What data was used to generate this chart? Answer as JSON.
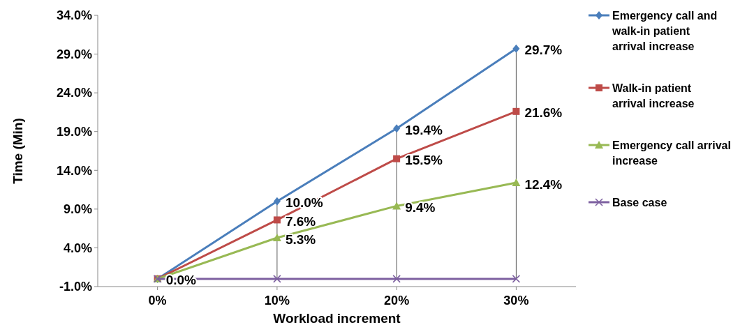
{
  "chart_data": {
    "type": "line",
    "xlabel": "Workload increment",
    "ylabel": "Time (Min)",
    "categories": [
      "0%",
      "10%",
      "20%",
      "30%"
    ],
    "ylim": [
      -1,
      34
    ],
    "yticks": [
      {
        "value": -1,
        "label": "-1.0%"
      },
      {
        "value": 4,
        "label": "4.0%"
      },
      {
        "value": 9,
        "label": "9.0%"
      },
      {
        "value": 14,
        "label": "14.0%"
      },
      {
        "value": 19,
        "label": "19.0%"
      },
      {
        "value": 24,
        "label": "24.0%"
      },
      {
        "value": 29,
        "label": "29.0%"
      },
      {
        "value": 34,
        "label": "34.0%"
      }
    ],
    "grid": "x",
    "legend": "right",
    "series": [
      {
        "name": "Emergency call and walk-in patient arrival increase",
        "color": "#4a7ebb",
        "marker": "diamond",
        "values": [
          0,
          10.0,
          19.4,
          29.7
        ],
        "value_labels": [
          null,
          "10.0%",
          "19.4%",
          "29.7%"
        ]
      },
      {
        "name": "Walk-in patient arrival increase",
        "color": "#be4b48",
        "marker": "square",
        "values": [
          0,
          7.6,
          15.5,
          21.6
        ],
        "value_labels": [
          null,
          "7.6%",
          "15.5%",
          "21.6%"
        ]
      },
      {
        "name": "Emergency call arrival increase",
        "color": "#98b954",
        "marker": "triangle",
        "values": [
          0,
          5.3,
          9.4,
          12.4
        ],
        "value_labels": [
          null,
          "5.3%",
          "9.4%",
          "12.4%"
        ]
      },
      {
        "name": "Base case",
        "color": "#7d60a0",
        "marker": "cross",
        "values": [
          0,
          0,
          0,
          0
        ],
        "value_labels": [
          "0.0%",
          null,
          null,
          null
        ]
      }
    ]
  }
}
